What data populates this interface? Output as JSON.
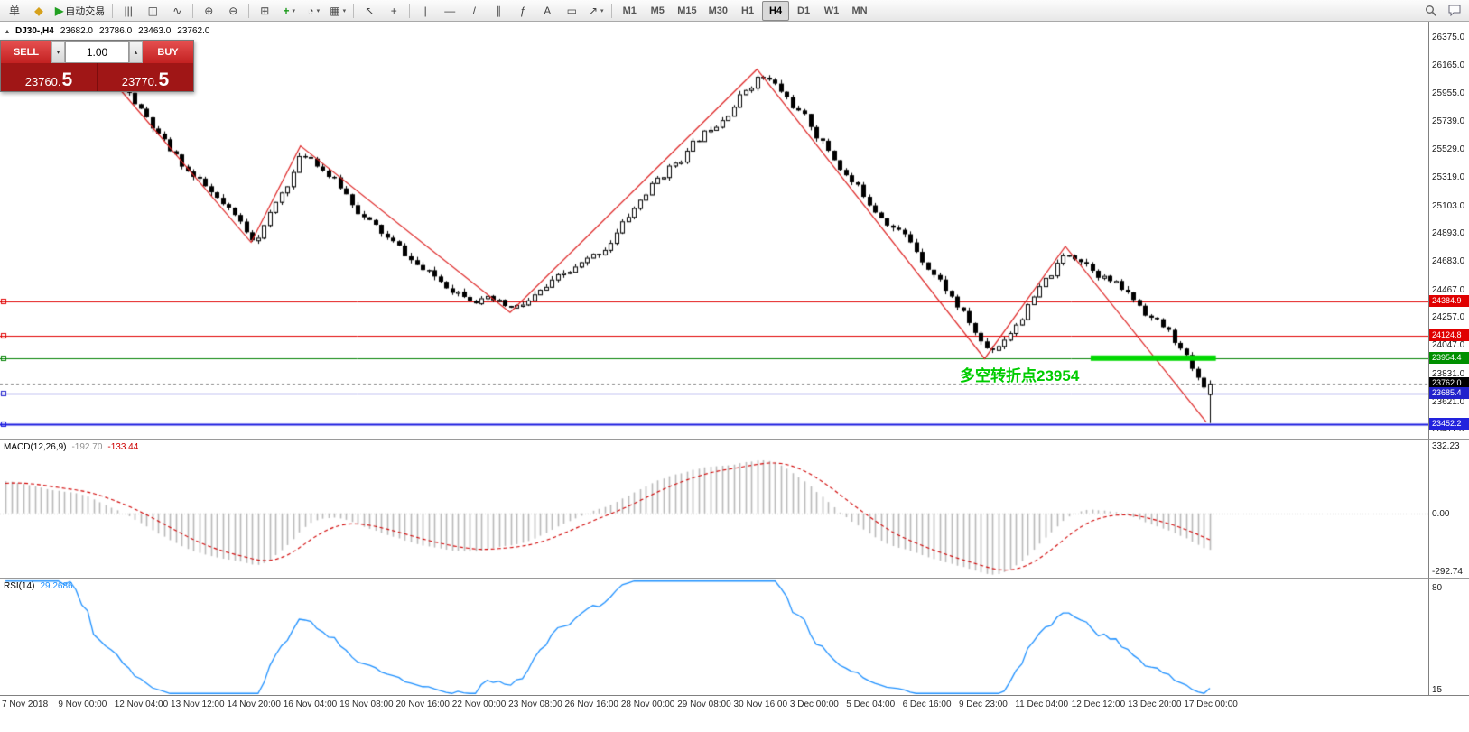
{
  "toolbar": {
    "active_timeframe": "H4",
    "items": [
      {
        "type": "button",
        "name": "new-order",
        "glyph": "单"
      },
      {
        "type": "button",
        "name": "alerts",
        "glyph": "◆",
        "glyph_color": "#d6a11c"
      },
      {
        "type": "button",
        "name": "autotrading",
        "glyph": "▶",
        "glyph_color": "#22a022",
        "label": "自动交易"
      },
      {
        "type": "sep"
      },
      {
        "type": "button",
        "name": "bar-chart",
        "glyph": "|||"
      },
      {
        "type": "button",
        "name": "candlestick-chart",
        "glyph": "◫"
      },
      {
        "type": "button",
        "name": "line-chart",
        "glyph": "∿"
      },
      {
        "type": "sep"
      },
      {
        "type": "button",
        "name": "zoom-in",
        "glyph": "⊕"
      },
      {
        "type": "button",
        "name": "zoom-out",
        "glyph": "⊖"
      },
      {
        "type": "sep"
      },
      {
        "type": "button",
        "name": "tile-windows",
        "glyph": "⊞"
      },
      {
        "type": "button",
        "name": "indicators",
        "glyph": "+",
        "glyph_color": "#1a9a1a",
        "caret": true
      },
      {
        "type": "button",
        "name": "periods",
        "glyph": "◔",
        "caret": true
      },
      {
        "type": "button",
        "name": "templates",
        "glyph": "▦",
        "caret": true
      },
      {
        "type": "sep"
      },
      {
        "type": "button",
        "name": "cursor",
        "glyph": "↖"
      },
      {
        "type": "button",
        "name": "crosshair",
        "glyph": "+"
      },
      {
        "type": "sep"
      },
      {
        "type": "button",
        "name": "vertical-line",
        "glyph": "|"
      },
      {
        "type": "button",
        "name": "horizontal-line",
        "glyph": "—"
      },
      {
        "type": "button",
        "name": "trendline",
        "glyph": "/"
      },
      {
        "type": "button",
        "name": "channel",
        "glyph": "∥"
      },
      {
        "type": "button",
        "name": "fibonacci",
        "glyph": "ƒ"
      },
      {
        "type": "button",
        "name": "text",
        "glyph": "A"
      },
      {
        "type": "button",
        "name": "text-label",
        "glyph": "▭"
      },
      {
        "type": "button",
        "name": "arrows",
        "glyph": "↗",
        "caret": true
      },
      {
        "type": "sep"
      },
      {
        "type": "tf",
        "name": "tf-m1",
        "label": "M1"
      },
      {
        "type": "tf",
        "name": "tf-m5",
        "label": "M5"
      },
      {
        "type": "tf",
        "name": "tf-m15",
        "label": "M15"
      },
      {
        "type": "tf",
        "name": "tf-m30",
        "label": "M30"
      },
      {
        "type": "tf",
        "name": "tf-h1",
        "label": "H1"
      },
      {
        "type": "tf",
        "name": "tf-h4",
        "label": "H4"
      },
      {
        "type": "tf",
        "name": "tf-d1",
        "label": "D1"
      },
      {
        "type": "tf",
        "name": "tf-w1",
        "label": "W1"
      },
      {
        "type": "tf",
        "name": "tf-mn",
        "label": "MN"
      },
      {
        "type": "spacer"
      },
      {
        "type": "button",
        "name": "search",
        "svg": "search"
      },
      {
        "type": "button",
        "name": "chat",
        "svg": "chat"
      }
    ]
  },
  "chart": {
    "symbol_label": "DJ30-,H4",
    "ohlc": {
      "open": "23682.0",
      "high": "23786.0",
      "low": "23463.0",
      "close": "23762.0"
    },
    "trade_panel": {
      "sell_label": "SELL",
      "buy_label": "BUY",
      "volume": "1.00",
      "sell_price": {
        "main": "23760.",
        "pips": "5"
      },
      "buy_price": {
        "main": "23770.",
        "pips": "5"
      }
    },
    "annotation": {
      "text": "多空转折点23954",
      "color": "#00cc00"
    },
    "price_axis": [
      "26375.0",
      "26165.0",
      "25955.0",
      "25739.0",
      "25529.0",
      "25319.0",
      "25103.0",
      "24893.0",
      "24683.0",
      "24467.0",
      "24257.0",
      "24047.0",
      "23831.0",
      "23621.0",
      "23411.0"
    ],
    "price_labels": [
      {
        "value": 24384.9,
        "text": "24384.9",
        "color": "#e00000"
      },
      {
        "value": 24124.8,
        "text": "24124.8",
        "color": "#e00000"
      },
      {
        "value": 23954.4,
        "text": "23954.4",
        "color": "#009000"
      },
      {
        "value": 23762.0,
        "text": "23762.0",
        "color": "#000000"
      },
      {
        "value": 23685.4,
        "text": "23685.4",
        "color": "#2222cc"
      },
      {
        "value": 23452.2,
        "text": "23452.2",
        "color": "#2222dd"
      }
    ]
  },
  "macd": {
    "label": "MACD(12,26,9)",
    "main_value": "-192.70",
    "signal_value": "-133.44",
    "axis": [
      {
        "text": "332.23",
        "value": 332.23
      },
      {
        "text": "0.00",
        "value": 0
      },
      {
        "text": "-292.74",
        "value": -292.74
      }
    ]
  },
  "rsi": {
    "label": "RSI(14)",
    "value": "29.2686",
    "axis": [
      {
        "text": "80",
        "value": 80
      },
      {
        "text": "15",
        "value": 15
      }
    ]
  },
  "timeline": [
    "7 Nov 2018",
    "9 Nov 00:00",
    "12 Nov 04:00",
    "13 Nov 12:00",
    "14 Nov 20:00",
    "16 Nov 04:00",
    "19 Nov 08:00",
    "20 Nov 16:00",
    "22 Nov 00:00",
    "23 Nov 08:00",
    "26 Nov 16:00",
    "28 Nov 00:00",
    "29 Nov 08:00",
    "30 Nov 16:00",
    "3 Dec 00:00",
    "5 Dec 04:00",
    "6 Dec 16:00",
    "9 Dec 23:00",
    "11 Dec 04:00",
    "12 Dec 12:00",
    "13 Dec 20:00",
    "17 Dec 00:00"
  ],
  "chart_data": {
    "type": "candlestick",
    "symbol": "DJ30-",
    "timeframe": "H4",
    "visible_price_range": [
      23345,
      26500
    ],
    "bar_count": 206,
    "last_bar": {
      "open": 23682,
      "high": 23786,
      "low": 23463,
      "close": 23762
    },
    "price_path_anchors": [
      [
        0,
        26290
      ],
      [
        0.05,
        26330
      ],
      [
        0.093,
        26010
      ],
      [
        0.13,
        25520
      ],
      [
        0.204,
        24830
      ],
      [
        0.245,
        25560
      ],
      [
        0.3,
        24950
      ],
      [
        0.35,
        24550
      ],
      [
        0.419,
        24300
      ],
      [
        0.45,
        24520
      ],
      [
        0.49,
        24750
      ],
      [
        0.53,
        25250
      ],
      [
        0.57,
        25600
      ],
      [
        0.624,
        26130
      ],
      [
        0.66,
        25750
      ],
      [
        0.7,
        25250
      ],
      [
        0.75,
        24800
      ],
      [
        0.78,
        24430
      ],
      [
        0.813,
        23960
      ],
      [
        0.84,
        24300
      ],
      [
        0.88,
        24790
      ],
      [
        0.91,
        24560
      ],
      [
        0.94,
        24330
      ],
      [
        0.968,
        24080
      ],
      [
        0.99,
        23700
      ],
      [
        1,
        23762
      ]
    ],
    "zigzag_points": [
      [
        0.093,
        26010
      ],
      [
        0.204,
        24830
      ],
      [
        0.245,
        25560
      ],
      [
        0.419,
        24300
      ],
      [
        0.624,
        26140
      ],
      [
        0.813,
        23950
      ],
      [
        0.88,
        24800
      ],
      [
        0.997,
        23470
      ]
    ],
    "zigzag_color": "#dd2222",
    "horizontal_lines": [
      {
        "value": 24384.9,
        "color": "#e00000",
        "width": 1,
        "style": "solid"
      },
      {
        "value": 24124.8,
        "color": "#e00000",
        "width": 1,
        "style": "solid"
      },
      {
        "value": 23954.4,
        "color": "#008000",
        "width": 1,
        "style": "solid"
      },
      {
        "value": 23762.0,
        "color": "#888888",
        "width": 1,
        "style": "dash"
      },
      {
        "value": 23685.4,
        "color": "#2222cc",
        "width": 1,
        "style": "solid"
      },
      {
        "value": 23452.2,
        "color": "#1a1adf",
        "width": 2,
        "style": "solid"
      }
    ],
    "highlight_segment": {
      "value": 23954.4,
      "x_from": 0.901,
      "x_to": 1.005,
      "color": "#00d800",
      "thickness": 6
    },
    "macd": {
      "fast": 12,
      "slow": 26,
      "signal": 9,
      "current_main": -192.7,
      "current_signal": -133.44,
      "axis_max": 332.23,
      "axis_min": -292.74
    },
    "rsi": {
      "period": 14,
      "current": 29.2686
    }
  }
}
